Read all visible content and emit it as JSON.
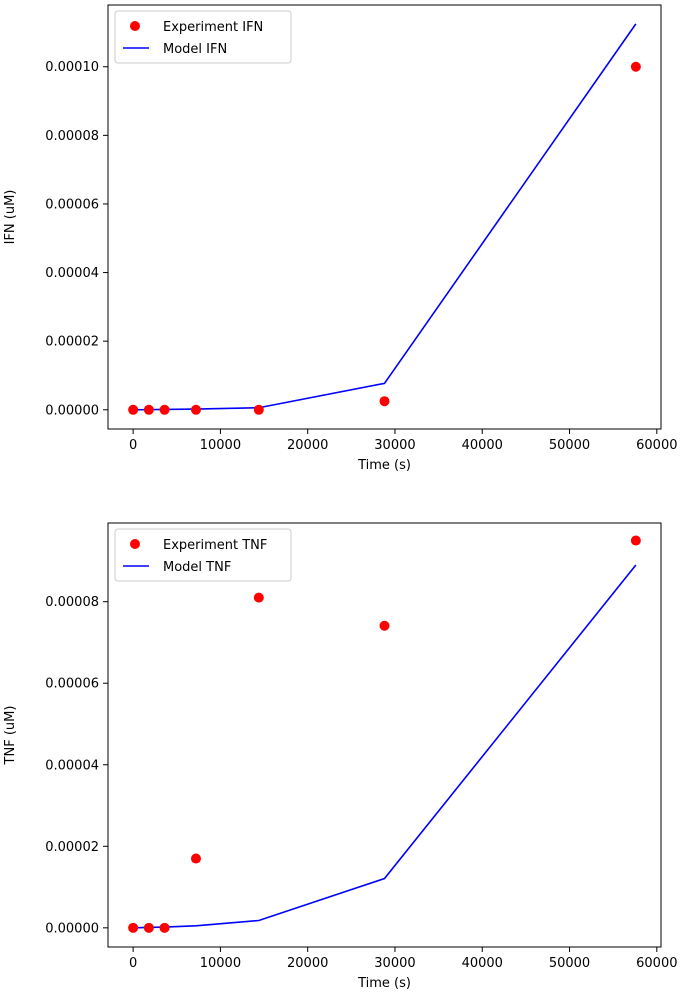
{
  "chart_data": [
    {
      "type": "scatter+line",
      "xlabel": "Time (s)",
      "ylabel": "IFN (uM)",
      "xlim": [
        -2880,
        60480
      ],
      "ylim": [
        -5.6e-06,
        0.000118
      ],
      "grid": false,
      "legend_position": "upper-left",
      "x_ticks": [
        0,
        10000,
        20000,
        30000,
        40000,
        50000,
        60000
      ],
      "x_tick_labels": [
        "0",
        "10000",
        "20000",
        "30000",
        "40000",
        "50000",
        "60000"
      ],
      "y_ticks": [
        0,
        2e-05,
        4e-05,
        6e-05,
        8e-05,
        0.0001
      ],
      "y_tick_labels": [
        "0.00000",
        "0.00002",
        "0.00004",
        "0.00006",
        "0.00008",
        "0.00010"
      ],
      "series": [
        {
          "name": "Experiment IFN",
          "kind": "scatter",
          "color": "#ff0000",
          "x": [
            0,
            1800,
            3600,
            7200,
            14400,
            28800,
            57600
          ],
          "y": [
            0,
            0,
            0,
            0,
            0,
            2.5e-06,
            0.0001
          ]
        },
        {
          "name": "Model IFN",
          "kind": "line",
          "color": "#0000ff",
          "x": [
            0,
            1800,
            3600,
            7200,
            14400,
            28800,
            57600
          ],
          "y": [
            0,
            5e-08,
            1e-07,
            2e-07,
            6e-07,
            7.7e-06,
            0.0001125
          ]
        }
      ]
    },
    {
      "type": "scatter+line",
      "xlabel": "Time (s)",
      "ylabel": "TNF (uM)",
      "xlim": [
        -2880,
        60480
      ],
      "ylim": [
        -4.7e-06,
        9.93e-05
      ],
      "grid": false,
      "legend_position": "upper-left",
      "x_ticks": [
        0,
        10000,
        20000,
        30000,
        40000,
        50000,
        60000
      ],
      "x_tick_labels": [
        "0",
        "10000",
        "20000",
        "30000",
        "40000",
        "50000",
        "60000"
      ],
      "y_ticks": [
        0,
        2e-05,
        4e-05,
        6e-05,
        8e-05
      ],
      "y_tick_labels": [
        "0.00000",
        "0.00002",
        "0.00004",
        "0.00006",
        "0.00008"
      ],
      "series": [
        {
          "name": "Experiment TNF",
          "kind": "scatter",
          "color": "#ff0000",
          "x": [
            0,
            1800,
            3600,
            7200,
            14400,
            28800,
            57600
          ],
          "y": [
            0,
            0,
            0,
            1.7e-05,
            8.1e-05,
            7.41e-05,
            9.5e-05
          ]
        },
        {
          "name": "Model TNF",
          "kind": "line",
          "color": "#0000ff",
          "x": [
            0,
            1800,
            3600,
            7200,
            14400,
            28800,
            57600
          ],
          "y": [
            0,
            1e-07,
            2e-07,
            5e-07,
            1.8e-06,
            1.21e-05,
            8.9e-05
          ]
        }
      ]
    }
  ]
}
